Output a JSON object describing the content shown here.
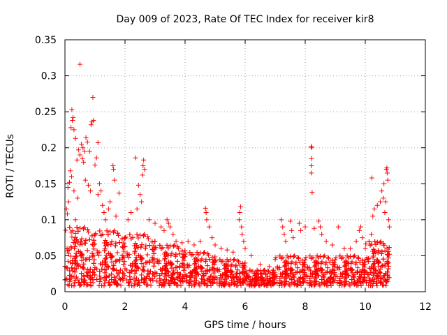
{
  "chart_data": {
    "type": "scatter",
    "title": "Day 009 of 2023, Rate Of TEC Index for receiver kir8",
    "xlabel": "GPS time / hours",
    "ylabel": "ROTI / TECUs",
    "xlim": [
      0,
      12
    ],
    "ylim": [
      0,
      0.35
    ],
    "grid": true,
    "marker": "plus",
    "color": "#ff0000",
    "x_ticks": [
      "0",
      "2",
      "4",
      "6",
      "8",
      "10",
      "12"
    ],
    "y_ticks": [
      "0",
      "0.05",
      "0.1",
      "0.15",
      "0.2",
      "0.25",
      "0.3",
      "0.35"
    ],
    "series": [
      {
        "name": "ROTI",
        "points": [
          [
            0.5,
            0.316
          ],
          [
            0.93,
            0.27
          ],
          [
            0.23,
            0.253
          ],
          [
            0.27,
            0.242
          ],
          [
            0.25,
            0.238
          ],
          [
            0.9,
            0.236
          ],
          [
            0.95,
            0.238
          ],
          [
            0.87,
            0.232
          ],
          [
            0.2,
            0.228
          ],
          [
            0.3,
            0.225
          ],
          [
            0.7,
            0.214
          ],
          [
            0.35,
            0.213
          ],
          [
            0.75,
            0.208
          ],
          [
            1.1,
            0.207
          ],
          [
            0.55,
            0.205
          ],
          [
            0.6,
            0.2
          ],
          [
            0.65,
            0.195
          ],
          [
            0.5,
            0.19
          ],
          [
            0.45,
            0.197
          ],
          [
            0.58,
            0.185
          ],
          [
            0.62,
            0.18
          ],
          [
            0.4,
            0.183
          ],
          [
            0.82,
            0.195
          ],
          [
            1.05,
            0.186
          ],
          [
            1.0,
            0.176
          ],
          [
            0.18,
            0.168
          ],
          [
            0.22,
            0.16
          ],
          [
            0.15,
            0.152
          ],
          [
            0.1,
            0.145
          ],
          [
            0.3,
            0.14
          ],
          [
            0.12,
            0.125
          ],
          [
            0.05,
            0.115
          ],
          [
            0.08,
            0.108
          ],
          [
            0.35,
            0.1
          ],
          [
            0.42,
            0.13
          ],
          [
            0.68,
            0.155
          ],
          [
            0.78,
            0.148
          ],
          [
            0.85,
            0.14
          ],
          [
            1.15,
            0.15
          ],
          [
            1.2,
            0.14
          ],
          [
            1.25,
            0.12
          ],
          [
            1.3,
            0.11
          ],
          [
            1.1,
            0.135
          ],
          [
            1.6,
            0.175
          ],
          [
            1.62,
            0.17
          ],
          [
            1.65,
            0.155
          ],
          [
            1.8,
            0.137
          ],
          [
            1.5,
            0.125
          ],
          [
            1.45,
            0.115
          ],
          [
            1.7,
            0.105
          ],
          [
            1.35,
            0.1
          ],
          [
            2.35,
            0.186
          ],
          [
            2.62,
            0.183
          ],
          [
            2.6,
            0.175
          ],
          [
            2.65,
            0.17
          ],
          [
            2.58,
            0.162
          ],
          [
            2.45,
            0.148
          ],
          [
            2.5,
            0.135
          ],
          [
            2.55,
            0.125
          ],
          [
            2.4,
            0.115
          ],
          [
            2.2,
            0.11
          ],
          [
            2.1,
            0.1
          ],
          [
            2.8,
            0.1
          ],
          [
            3.0,
            0.095
          ],
          [
            3.2,
            0.09
          ],
          [
            3.4,
            0.1
          ],
          [
            3.45,
            0.095
          ],
          [
            3.5,
            0.09
          ],
          [
            3.3,
            0.085
          ],
          [
            3.6,
            0.08
          ],
          [
            3.7,
            0.07
          ],
          [
            3.9,
            0.068
          ],
          [
            4.1,
            0.07
          ],
          [
            4.3,
            0.065
          ],
          [
            4.5,
            0.07
          ],
          [
            4.68,
            0.116
          ],
          [
            4.7,
            0.11
          ],
          [
            4.72,
            0.1
          ],
          [
            4.8,
            0.09
          ],
          [
            4.9,
            0.075
          ],
          [
            5.0,
            0.065
          ],
          [
            5.2,
            0.06
          ],
          [
            5.4,
            0.058
          ],
          [
            5.6,
            0.055
          ],
          [
            5.85,
            0.118
          ],
          [
            5.82,
            0.11
          ],
          [
            5.8,
            0.1
          ],
          [
            5.88,
            0.09
          ],
          [
            5.9,
            0.08
          ],
          [
            5.95,
            0.07
          ],
          [
            6.0,
            0.06
          ],
          [
            6.2,
            0.05
          ],
          [
            6.5,
            0.038
          ],
          [
            6.8,
            0.035
          ],
          [
            7.0,
            0.045
          ],
          [
            7.2,
            0.1
          ],
          [
            7.25,
            0.09
          ],
          [
            7.3,
            0.08
          ],
          [
            7.35,
            0.07
          ],
          [
            7.5,
            0.098
          ],
          [
            7.55,
            0.085
          ],
          [
            7.6,
            0.075
          ],
          [
            7.8,
            0.095
          ],
          [
            7.85,
            0.085
          ],
          [
            8.0,
            0.09
          ],
          [
            8.2,
            0.202
          ],
          [
            8.22,
            0.2
          ],
          [
            8.21,
            0.185
          ],
          [
            8.2,
            0.175
          ],
          [
            8.2,
            0.165
          ],
          [
            8.23,
            0.138
          ],
          [
            8.3,
            0.088
          ],
          [
            8.45,
            0.098
          ],
          [
            8.5,
            0.09
          ],
          [
            8.55,
            0.08
          ],
          [
            8.7,
            0.07
          ],
          [
            8.9,
            0.065
          ],
          [
            9.1,
            0.09
          ],
          [
            9.3,
            0.06
          ],
          [
            9.5,
            0.06
          ],
          [
            9.7,
            0.07
          ],
          [
            9.8,
            0.085
          ],
          [
            9.85,
            0.09
          ],
          [
            9.9,
            0.075
          ],
          [
            10.0,
            0.06
          ],
          [
            10.2,
            0.08
          ],
          [
            10.22,
            0.158
          ],
          [
            10.25,
            0.105
          ],
          [
            10.3,
            0.115
          ],
          [
            10.4,
            0.12
          ],
          [
            10.5,
            0.125
          ],
          [
            10.55,
            0.14
          ],
          [
            10.6,
            0.13
          ],
          [
            10.62,
            0.15
          ],
          [
            10.65,
            0.11
          ],
          [
            10.68,
            0.125
          ],
          [
            10.7,
            0.17
          ],
          [
            10.72,
            0.172
          ],
          [
            10.73,
            0.165
          ],
          [
            10.75,
            0.155
          ],
          [
            10.78,
            0.1
          ],
          [
            10.8,
            0.09
          ]
        ],
        "bands": [
          {
            "x": [
              0.0,
              1.0
            ],
            "y": [
              0.008,
              0.09
            ],
            "count": 320
          },
          {
            "x": [
              1.0,
              2.0
            ],
            "y": [
              0.008,
              0.085
            ],
            "count": 300
          },
          {
            "x": [
              2.0,
              3.0
            ],
            "y": [
              0.008,
              0.08
            ],
            "count": 280
          },
          {
            "x": [
              3.0,
              4.0
            ],
            "y": [
              0.008,
              0.065
            ],
            "count": 260
          },
          {
            "x": [
              4.0,
              5.0
            ],
            "y": [
              0.008,
              0.055
            ],
            "count": 230
          },
          {
            "x": [
              5.0,
              6.0
            ],
            "y": [
              0.008,
              0.045
            ],
            "count": 200
          },
          {
            "x": [
              6.0,
              7.0
            ],
            "y": [
              0.008,
              0.03
            ],
            "count": 170
          },
          {
            "x": [
              7.0,
              8.0
            ],
            "y": [
              0.008,
              0.05
            ],
            "count": 200
          },
          {
            "x": [
              8.0,
              9.0
            ],
            "y": [
              0.008,
              0.05
            ],
            "count": 210
          },
          {
            "x": [
              9.0,
              10.0
            ],
            "y": [
              0.008,
              0.05
            ],
            "count": 210
          },
          {
            "x": [
              10.0,
              10.8
            ],
            "y": [
              0.008,
              0.07
            ],
            "count": 240
          },
          {
            "x": [
              0.0,
              10.8
            ],
            "y": [
              0.01,
              0.03
            ],
            "count": 600
          }
        ]
      }
    ]
  }
}
